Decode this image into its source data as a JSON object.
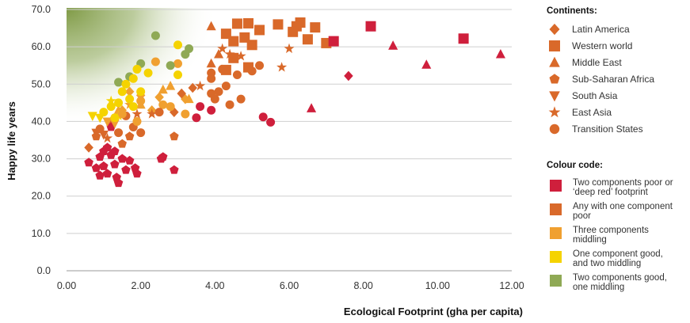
{
  "chart_data": {
    "type": "scatter",
    "xlabel": "Ecological Footprint (gha per capita)",
    "ylabel": "Happy life years",
    "xlim": [
      0,
      12
    ],
    "ylim": [
      0,
      70
    ],
    "xticks": [
      "0.00",
      "2.00",
      "4.00",
      "6.00",
      "8.00",
      "10.00",
      "12.00"
    ],
    "yticks": [
      "0.0",
      "10.0",
      "20.0",
      "30.0",
      "40.0",
      "50.0",
      "60.0",
      "70.0"
    ],
    "grid": "horizontal",
    "colors": {
      "red": "#cf1f3c",
      "orange": "#d9692a",
      "lightorange": "#f0a030",
      "yellow": "#f5d300",
      "green": "#8fa955"
    },
    "series": [
      {
        "name": "Western world",
        "marker": "square",
        "points": [
          [
            4.6,
            66.2,
            "orange"
          ],
          [
            4.9,
            66.3,
            "orange"
          ],
          [
            5.7,
            66.0,
            "orange"
          ],
          [
            6.3,
            66.5,
            "orange"
          ],
          [
            6.2,
            65.5,
            "orange"
          ],
          [
            6.7,
            65.2,
            "orange"
          ],
          [
            4.3,
            63.5,
            "orange"
          ],
          [
            5.2,
            64.5,
            "orange"
          ],
          [
            6.1,
            64.0,
            "orange"
          ],
          [
            4.8,
            62.5,
            "orange"
          ],
          [
            6.5,
            62.0,
            "orange"
          ],
          [
            4.5,
            61.5,
            "orange"
          ],
          [
            5.0,
            60.5,
            "orange"
          ],
          [
            7.0,
            61.0,
            "orange"
          ],
          [
            7.2,
            61.5,
            "red"
          ],
          [
            8.2,
            65.5,
            "red"
          ],
          [
            10.7,
            62.2,
            "red"
          ],
          [
            4.3,
            53.8,
            "orange"
          ],
          [
            4.9,
            54.5,
            "orange"
          ],
          [
            4.5,
            57.0,
            "orange"
          ]
        ]
      },
      {
        "name": "Latin America",
        "marker": "diamond",
        "points": [
          [
            3.2,
            46.0,
            "lightorange"
          ],
          [
            3.4,
            49.0,
            "orange"
          ],
          [
            2.3,
            43.0,
            "lightorange"
          ],
          [
            2.5,
            46.5,
            "lightorange"
          ],
          [
            7.6,
            52.2,
            "red"
          ],
          [
            0.6,
            33.0,
            "orange"
          ],
          [
            1.7,
            48.0,
            "lightorange"
          ],
          [
            2.0,
            47.0,
            "lightorange"
          ],
          [
            1.5,
            43.0,
            "lightorange"
          ],
          [
            1.2,
            40.0,
            "orange"
          ],
          [
            2.9,
            42.5,
            "orange"
          ],
          [
            3.1,
            47.5,
            "orange"
          ]
        ]
      },
      {
        "name": "Middle East",
        "marker": "triangle",
        "points": [
          [
            3.9,
            65.5,
            "orange"
          ],
          [
            8.8,
            60.3,
            "red"
          ],
          [
            9.7,
            55.2,
            "red"
          ],
          [
            11.7,
            58.0,
            "red"
          ],
          [
            6.6,
            43.5,
            "red"
          ],
          [
            3.9,
            55.5,
            "orange"
          ],
          [
            3.3,
            46.0,
            "lightorange"
          ],
          [
            2.6,
            48.5,
            "lightorange"
          ],
          [
            2.0,
            44.5,
            "lightorange"
          ],
          [
            4.1,
            58.0,
            "orange"
          ],
          [
            1.4,
            43.0,
            "lightorange"
          ],
          [
            2.8,
            49.5,
            "lightorange"
          ]
        ]
      },
      {
        "name": "Sub-Saharan Africa",
        "marker": "pentagon",
        "points": [
          [
            0.6,
            29.0,
            "red"
          ],
          [
            0.8,
            27.5,
            "red"
          ],
          [
            0.9,
            25.5,
            "red"
          ],
          [
            1.0,
            28.0,
            "red"
          ],
          [
            1.1,
            26.0,
            "red"
          ],
          [
            1.2,
            31.0,
            "red"
          ],
          [
            1.3,
            28.5,
            "red"
          ],
          [
            1.4,
            23.5,
            "red"
          ],
          [
            1.5,
            30.0,
            "red"
          ],
          [
            1.6,
            27.0,
            "red"
          ],
          [
            1.7,
            29.5,
            "red"
          ],
          [
            1.9,
            26.0,
            "red"
          ],
          [
            1.0,
            32.0,
            "red"
          ],
          [
            0.9,
            30.5,
            "red"
          ],
          [
            1.1,
            33.0,
            "red"
          ],
          [
            1.3,
            32.0,
            "red"
          ],
          [
            2.6,
            30.5,
            "red"
          ],
          [
            2.9,
            27.0,
            "red"
          ],
          [
            2.55,
            30.0,
            "red"
          ],
          [
            1.85,
            27.5,
            "red"
          ],
          [
            1.2,
            38.5,
            "red"
          ],
          [
            1.5,
            34.0,
            "orange"
          ],
          [
            1.7,
            36.0,
            "orange"
          ],
          [
            0.8,
            36.0,
            "orange"
          ],
          [
            2.9,
            36.0,
            "orange"
          ],
          [
            1.35,
            25.0,
            "red"
          ]
        ]
      },
      {
        "name": "South Asia",
        "marker": "triangle-down",
        "points": [
          [
            0.7,
            41.5,
            "yellow"
          ],
          [
            0.8,
            37.0,
            "orange"
          ],
          [
            1.0,
            36.5,
            "orange"
          ],
          [
            1.3,
            39.5,
            "lightorange"
          ],
          [
            1.1,
            40.0,
            "lightorange"
          ],
          [
            0.9,
            41.0,
            "yellow"
          ]
        ]
      },
      {
        "name": "East Asia",
        "marker": "star",
        "points": [
          [
            6.0,
            59.5,
            "orange"
          ],
          [
            5.8,
            54.5,
            "orange"
          ],
          [
            4.2,
            59.5,
            "orange"
          ],
          [
            4.4,
            58.0,
            "orange"
          ],
          [
            4.7,
            57.5,
            "orange"
          ],
          [
            3.6,
            49.5,
            "orange"
          ],
          [
            2.3,
            42.0,
            "orange"
          ],
          [
            1.7,
            44.5,
            "lightorange"
          ],
          [
            1.2,
            45.5,
            "yellow"
          ],
          [
            1.4,
            41.5,
            "yellow"
          ],
          [
            1.9,
            42.0,
            "orange"
          ],
          [
            1.1,
            35.5,
            "orange"
          ]
        ]
      },
      {
        "name": "Transition States",
        "marker": "circle",
        "points": [
          [
            3.5,
            41.0,
            "red"
          ],
          [
            3.6,
            44.0,
            "red"
          ],
          [
            3.9,
            43.0,
            "red"
          ],
          [
            5.3,
            41.2,
            "red"
          ],
          [
            5.5,
            39.8,
            "red"
          ],
          [
            4.1,
            48.0,
            "orange"
          ],
          [
            3.9,
            51.5,
            "orange"
          ],
          [
            4.3,
            49.5,
            "orange"
          ],
          [
            4.6,
            52.5,
            "orange"
          ],
          [
            4.0,
            46.0,
            "orange"
          ],
          [
            3.9,
            47.5,
            "orange"
          ],
          [
            4.4,
            44.5,
            "orange"
          ],
          [
            4.2,
            54.0,
            "orange"
          ],
          [
            4.7,
            46.0,
            "orange"
          ],
          [
            5.2,
            55.0,
            "orange"
          ],
          [
            5.0,
            53.5,
            "orange"
          ],
          [
            3.9,
            53.0,
            "orange"
          ],
          [
            2.6,
            44.5,
            "lightorange"
          ],
          [
            2.8,
            44.0,
            "lightorange"
          ],
          [
            3.2,
            42.0,
            "lightorange"
          ],
          [
            2.5,
            42.5,
            "orange"
          ],
          [
            2.0,
            45.5,
            "lightorange"
          ],
          [
            1.6,
            41.5,
            "orange"
          ],
          [
            1.8,
            38.5,
            "orange"
          ],
          [
            2.0,
            37.0,
            "orange"
          ],
          [
            1.4,
            37.0,
            "orange"
          ],
          [
            0.9,
            38.0,
            "orange"
          ],
          [
            1.5,
            42.0,
            "lightorange"
          ],
          [
            2.4,
            56.0,
            "lightorange"
          ],
          [
            3.0,
            55.5,
            "lightorange"
          ],
          [
            3.0,
            60.5,
            "yellow"
          ],
          [
            2.4,
            63.0,
            "green"
          ],
          [
            2.0,
            55.5,
            "green"
          ],
          [
            2.8,
            55.0,
            "green"
          ],
          [
            3.3,
            59.5,
            "green"
          ],
          [
            3.2,
            58.0,
            "green"
          ],
          [
            1.7,
            52.0,
            "green"
          ],
          [
            1.4,
            50.5,
            "green"
          ],
          [
            1.9,
            54.0,
            "yellow"
          ],
          [
            2.2,
            53.0,
            "yellow"
          ],
          [
            1.8,
            51.5,
            "yellow"
          ],
          [
            1.6,
            50.0,
            "yellow"
          ],
          [
            2.0,
            48.0,
            "yellow"
          ],
          [
            1.5,
            48.0,
            "yellow"
          ],
          [
            1.7,
            46.0,
            "yellow"
          ],
          [
            1.4,
            45.0,
            "yellow"
          ],
          [
            1.2,
            44.0,
            "yellow"
          ],
          [
            1.0,
            42.5,
            "yellow"
          ],
          [
            1.3,
            41.0,
            "yellow"
          ],
          [
            1.8,
            44.0,
            "yellow"
          ],
          [
            1.9,
            40.0,
            "lightorange"
          ],
          [
            3.0,
            52.5,
            "yellow"
          ]
        ]
      }
    ]
  },
  "legend": {
    "continents_title": "Continents:",
    "continents": [
      {
        "label": "Latin America",
        "marker": "diamond"
      },
      {
        "label": "Western world",
        "marker": "square"
      },
      {
        "label": "Middle East",
        "marker": "triangle"
      },
      {
        "label": "Sub-Saharan Africa",
        "marker": "pentagon"
      },
      {
        "label": "South Asia",
        "marker": "triangle-down"
      },
      {
        "label": "East Asia",
        "marker": "star"
      },
      {
        "label": "Transition States",
        "marker": "circle"
      }
    ],
    "colour_title": "Colour code:",
    "colour_codes": [
      {
        "color": "#cf1f3c",
        "lines": [
          "Two components poor or",
          "‘deep red’ footprint"
        ]
      },
      {
        "color": "#d9692a",
        "lines": [
          "Any with one component",
          "poor"
        ]
      },
      {
        "color": "#f0a030",
        "lines": [
          "Three components",
          "middling"
        ]
      },
      {
        "color": "#f5d300",
        "lines": [
          "One component good,",
          "and two middling"
        ]
      },
      {
        "color": "#8fa955",
        "lines": [
          "Two components good,",
          "one middling"
        ]
      }
    ]
  }
}
